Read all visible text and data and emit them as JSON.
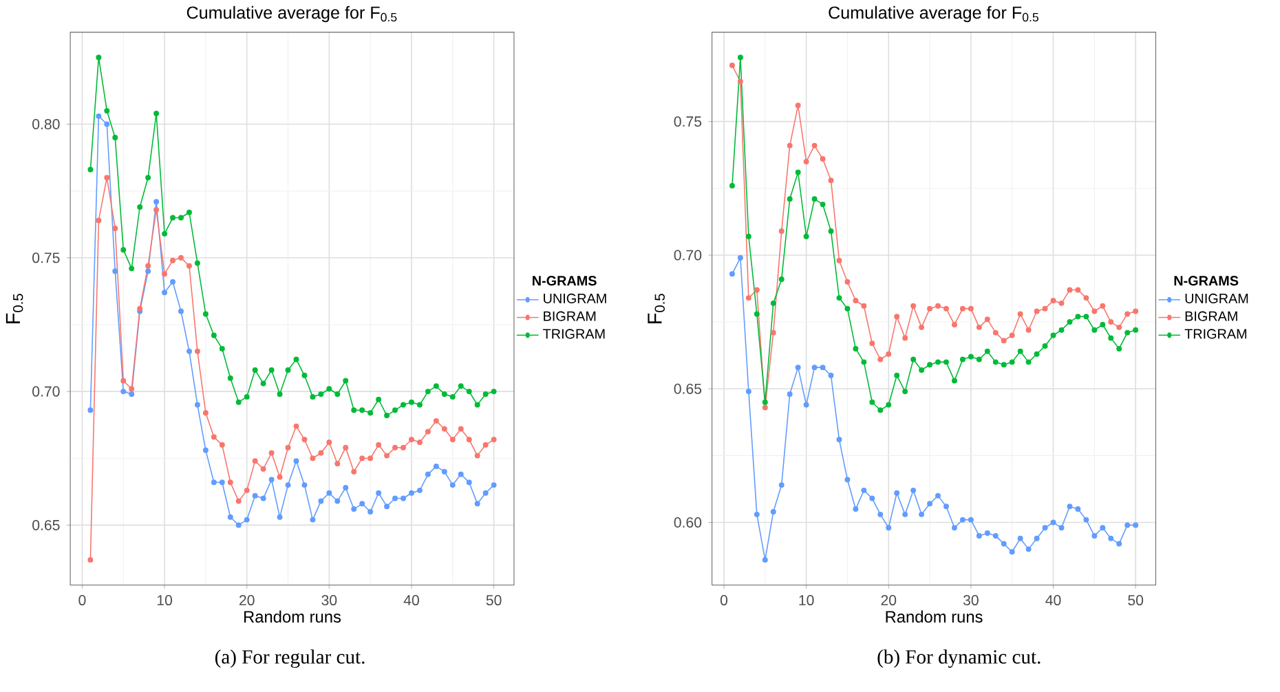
{
  "chart_data": [
    {
      "type": "line",
      "title": "Cumulative average for F$_{0.5}$",
      "xlabel": "Random runs",
      "ylabel": "F$_{0.5}$",
      "legend_title": "N-GRAMS",
      "legend": "right",
      "grid": true,
      "marker": "circle",
      "line_style": "solid",
      "annotations": [
        "(a)  For regular cut."
      ],
      "x": [
        1,
        2,
        3,
        4,
        5,
        6,
        7,
        8,
        9,
        10,
        11,
        12,
        13,
        14,
        15,
        16,
        17,
        18,
        19,
        20,
        21,
        22,
        23,
        24,
        25,
        26,
        27,
        28,
        29,
        30,
        31,
        32,
        33,
        34,
        35,
        36,
        37,
        38,
        39,
        40,
        41,
        42,
        43,
        44,
        45,
        46,
        47,
        48,
        49,
        50
      ],
      "xlim": [
        -1.45,
        52.45
      ],
      "xticks": [
        0,
        10,
        20,
        30,
        40,
        50
      ],
      "ylim": [
        0.6276,
        0.8344
      ],
      "yticks": [
        {
          "value": 0.65,
          "label": "0.65"
        },
        {
          "value": 0.7,
          "label": "0.70"
        },
        {
          "value": 0.75,
          "label": "0.75"
        },
        {
          "value": 0.8,
          "label": "0.80"
        }
      ],
      "series": [
        {
          "name": "UNIGRAM",
          "color": "#619cff",
          "values": [
            0.693,
            0.803,
            0.8,
            0.745,
            0.7,
            0.699,
            0.73,
            0.745,
            0.771,
            0.737,
            0.741,
            0.73,
            0.715,
            0.695,
            0.678,
            0.666,
            0.666,
            0.653,
            0.65,
            0.652,
            0.661,
            0.66,
            0.667,
            0.653,
            0.665,
            0.674,
            0.665,
            0.652,
            0.659,
            0.662,
            0.659,
            0.664,
            0.656,
            0.658,
            0.655,
            0.662,
            0.657,
            0.66,
            0.66,
            0.662,
            0.663,
            0.669,
            0.672,
            0.67,
            0.665,
            0.669,
            0.666,
            0.658,
            0.662,
            0.665
          ]
        },
        {
          "name": "BIGRAM",
          "color": "#f8766d",
          "values": [
            0.637,
            0.764,
            0.78,
            0.761,
            0.704,
            0.701,
            0.731,
            0.747,
            0.768,
            0.744,
            0.749,
            0.75,
            0.747,
            0.715,
            0.692,
            0.683,
            0.68,
            0.666,
            0.659,
            0.663,
            0.674,
            0.671,
            0.677,
            0.668,
            0.679,
            0.687,
            0.682,
            0.675,
            0.677,
            0.681,
            0.673,
            0.679,
            0.67,
            0.675,
            0.675,
            0.68,
            0.676,
            0.679,
            0.679,
            0.682,
            0.681,
            0.685,
            0.689,
            0.686,
            0.682,
            0.686,
            0.682,
            0.676,
            0.68,
            0.682
          ]
        },
        {
          "name": "TRIGRAM",
          "color": "#00ba38",
          "values": [
            0.783,
            0.825,
            0.805,
            0.795,
            0.753,
            0.746,
            0.769,
            0.78,
            0.804,
            0.759,
            0.765,
            0.765,
            0.767,
            0.748,
            0.729,
            0.721,
            0.716,
            0.705,
            0.696,
            0.698,
            0.708,
            0.703,
            0.708,
            0.699,
            0.708,
            0.712,
            0.706,
            0.698,
            0.699,
            0.701,
            0.699,
            0.704,
            0.693,
            0.693,
            0.692,
            0.697,
            0.691,
            0.693,
            0.695,
            0.696,
            0.695,
            0.7,
            0.702,
            0.699,
            0.698,
            0.702,
            0.7,
            0.695,
            0.699,
            0.7
          ]
        }
      ]
    },
    {
      "type": "line",
      "title": "Cumulative average for F$_{0.5}$",
      "xlabel": "Random runs",
      "ylabel": "F$_{0.5}$",
      "legend_title": "N-GRAMS",
      "legend": "right",
      "grid": true,
      "marker": "circle",
      "line_style": "solid",
      "annotations": [
        "(b)  For dynamic cut."
      ],
      "x": [
        1,
        2,
        3,
        4,
        5,
        6,
        7,
        8,
        9,
        10,
        11,
        12,
        13,
        14,
        15,
        16,
        17,
        18,
        19,
        20,
        21,
        22,
        23,
        24,
        25,
        26,
        27,
        28,
        29,
        30,
        31,
        32,
        33,
        34,
        35,
        36,
        37,
        38,
        39,
        40,
        41,
        42,
        43,
        44,
        45,
        46,
        47,
        48,
        49,
        50
      ],
      "xlim": [
        -1.45,
        52.45
      ],
      "xticks": [
        0,
        10,
        20,
        30,
        40,
        50
      ],
      "ylim": [
        0.5766,
        0.7834
      ],
      "yticks": [
        {
          "value": 0.6,
          "label": "0.60"
        },
        {
          "value": 0.65,
          "label": "0.65"
        },
        {
          "value": 0.7,
          "label": "0.70"
        },
        {
          "value": 0.75,
          "label": "0.75"
        }
      ],
      "series": [
        {
          "name": "UNIGRAM",
          "color": "#619cff",
          "values": [
            0.693,
            0.699,
            0.649,
            0.603,
            0.586,
            0.604,
            0.614,
            0.648,
            0.658,
            0.644,
            0.658,
            0.658,
            0.655,
            0.631,
            0.616,
            0.605,
            0.612,
            0.609,
            0.603,
            0.598,
            0.611,
            0.603,
            0.612,
            0.603,
            0.607,
            0.61,
            0.606,
            0.598,
            0.601,
            0.601,
            0.595,
            0.596,
            0.595,
            0.592,
            0.589,
            0.594,
            0.59,
            0.594,
            0.598,
            0.6,
            0.598,
            0.606,
            0.605,
            0.601,
            0.595,
            0.598,
            0.594,
            0.592,
            0.599,
            0.599
          ]
        },
        {
          "name": "BIGRAM",
          "color": "#f8766d",
          "values": [
            0.771,
            0.765,
            0.684,
            0.687,
            0.643,
            0.671,
            0.709,
            0.741,
            0.756,
            0.735,
            0.741,
            0.736,
            0.728,
            0.698,
            0.69,
            0.683,
            0.681,
            0.667,
            0.661,
            0.663,
            0.677,
            0.669,
            0.681,
            0.673,
            0.68,
            0.681,
            0.68,
            0.674,
            0.68,
            0.68,
            0.673,
            0.676,
            0.671,
            0.668,
            0.67,
            0.678,
            0.672,
            0.679,
            0.68,
            0.683,
            0.682,
            0.687,
            0.687,
            0.684,
            0.679,
            0.681,
            0.675,
            0.673,
            0.678,
            0.679
          ]
        },
        {
          "name": "TRIGRAM",
          "color": "#00ba38",
          "values": [
            0.726,
            0.774,
            0.707,
            0.678,
            0.645,
            0.682,
            0.691,
            0.721,
            0.731,
            0.707,
            0.721,
            0.719,
            0.709,
            0.684,
            0.68,
            0.665,
            0.66,
            0.645,
            0.642,
            0.644,
            0.655,
            0.649,
            0.661,
            0.657,
            0.659,
            0.66,
            0.66,
            0.653,
            0.661,
            0.662,
            0.661,
            0.664,
            0.66,
            0.659,
            0.66,
            0.664,
            0.66,
            0.663,
            0.666,
            0.67,
            0.672,
            0.675,
            0.677,
            0.677,
            0.672,
            0.674,
            0.669,
            0.665,
            0.671,
            0.672
          ]
        }
      ]
    }
  ]
}
